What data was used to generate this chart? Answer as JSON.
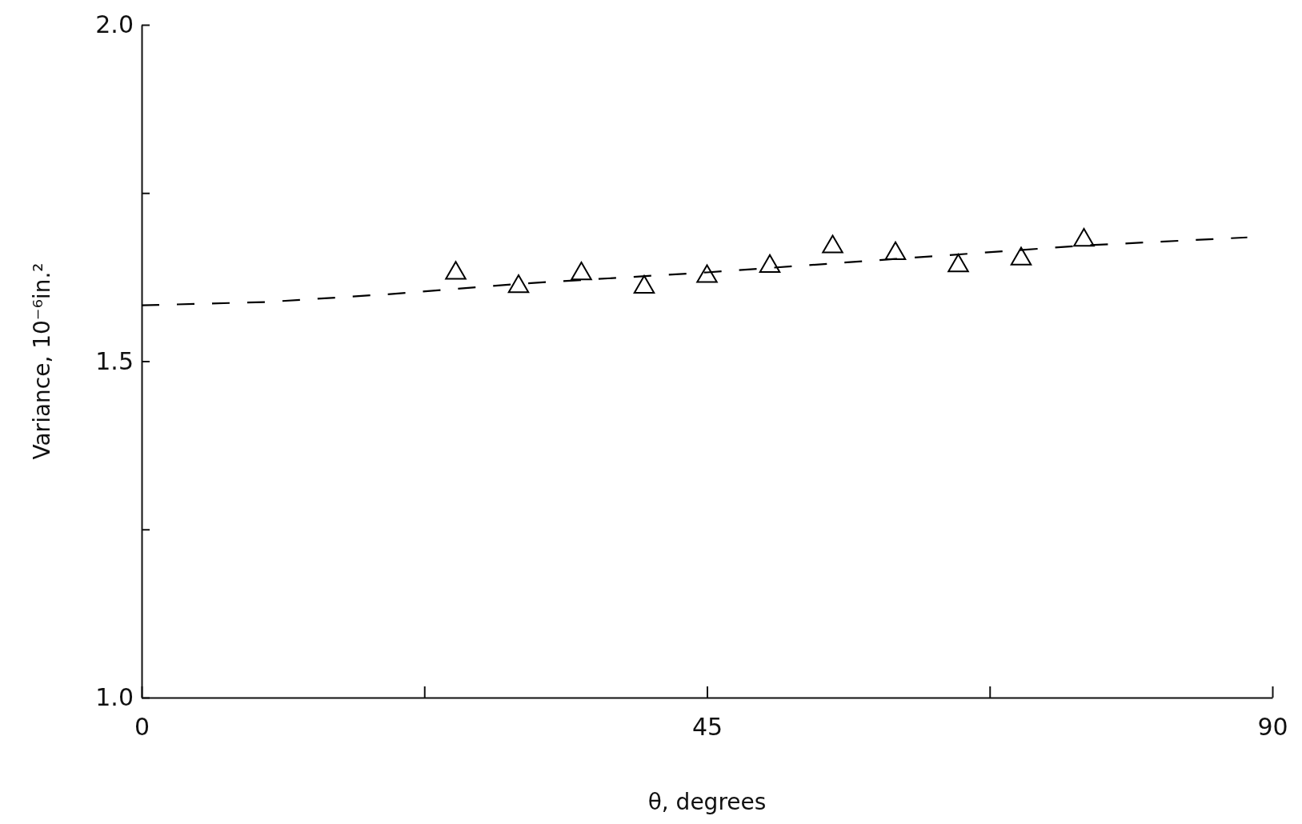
{
  "chart_data": {
    "type": "scatter",
    "xlabel": "θ, degrees",
    "ylabel": "Variance, 10⁻⁶in.²",
    "xlim": [
      0,
      90
    ],
    "ylim": [
      1.0,
      2.0
    ],
    "xticks": [
      0,
      {
        "value": 22.5,
        "label": null
      },
      45,
      {
        "value": 67.5,
        "label": null
      },
      90
    ],
    "yticks": [
      {
        "value": 1.0,
        "label": "1.0"
      },
      {
        "value": 1.25,
        "label": null
      },
      1.5,
      {
        "value": 1.75,
        "label": null
      },
      {
        "value": 2.0,
        "label": "2.0"
      }
    ],
    "grid": false,
    "series": [
      {
        "marker": "triangle",
        "color": "#000000",
        "x": [
          25,
          30,
          35,
          40,
          45,
          50,
          55,
          60,
          65,
          70,
          75
        ],
        "values": [
          1.631,
          1.611,
          1.63,
          1.61,
          1.626,
          1.641,
          1.67,
          1.66,
          1.642,
          1.652,
          1.68
        ]
      },
      {
        "type": "line",
        "line_style": "dashed",
        "marker": "none",
        "color": "#000000",
        "x": [
          0,
          10,
          20,
          30,
          45,
          60,
          75,
          88
        ],
        "values": [
          1.583,
          1.588,
          1.6,
          1.615,
          1.632,
          1.652,
          1.672,
          1.684
        ]
      }
    ]
  }
}
